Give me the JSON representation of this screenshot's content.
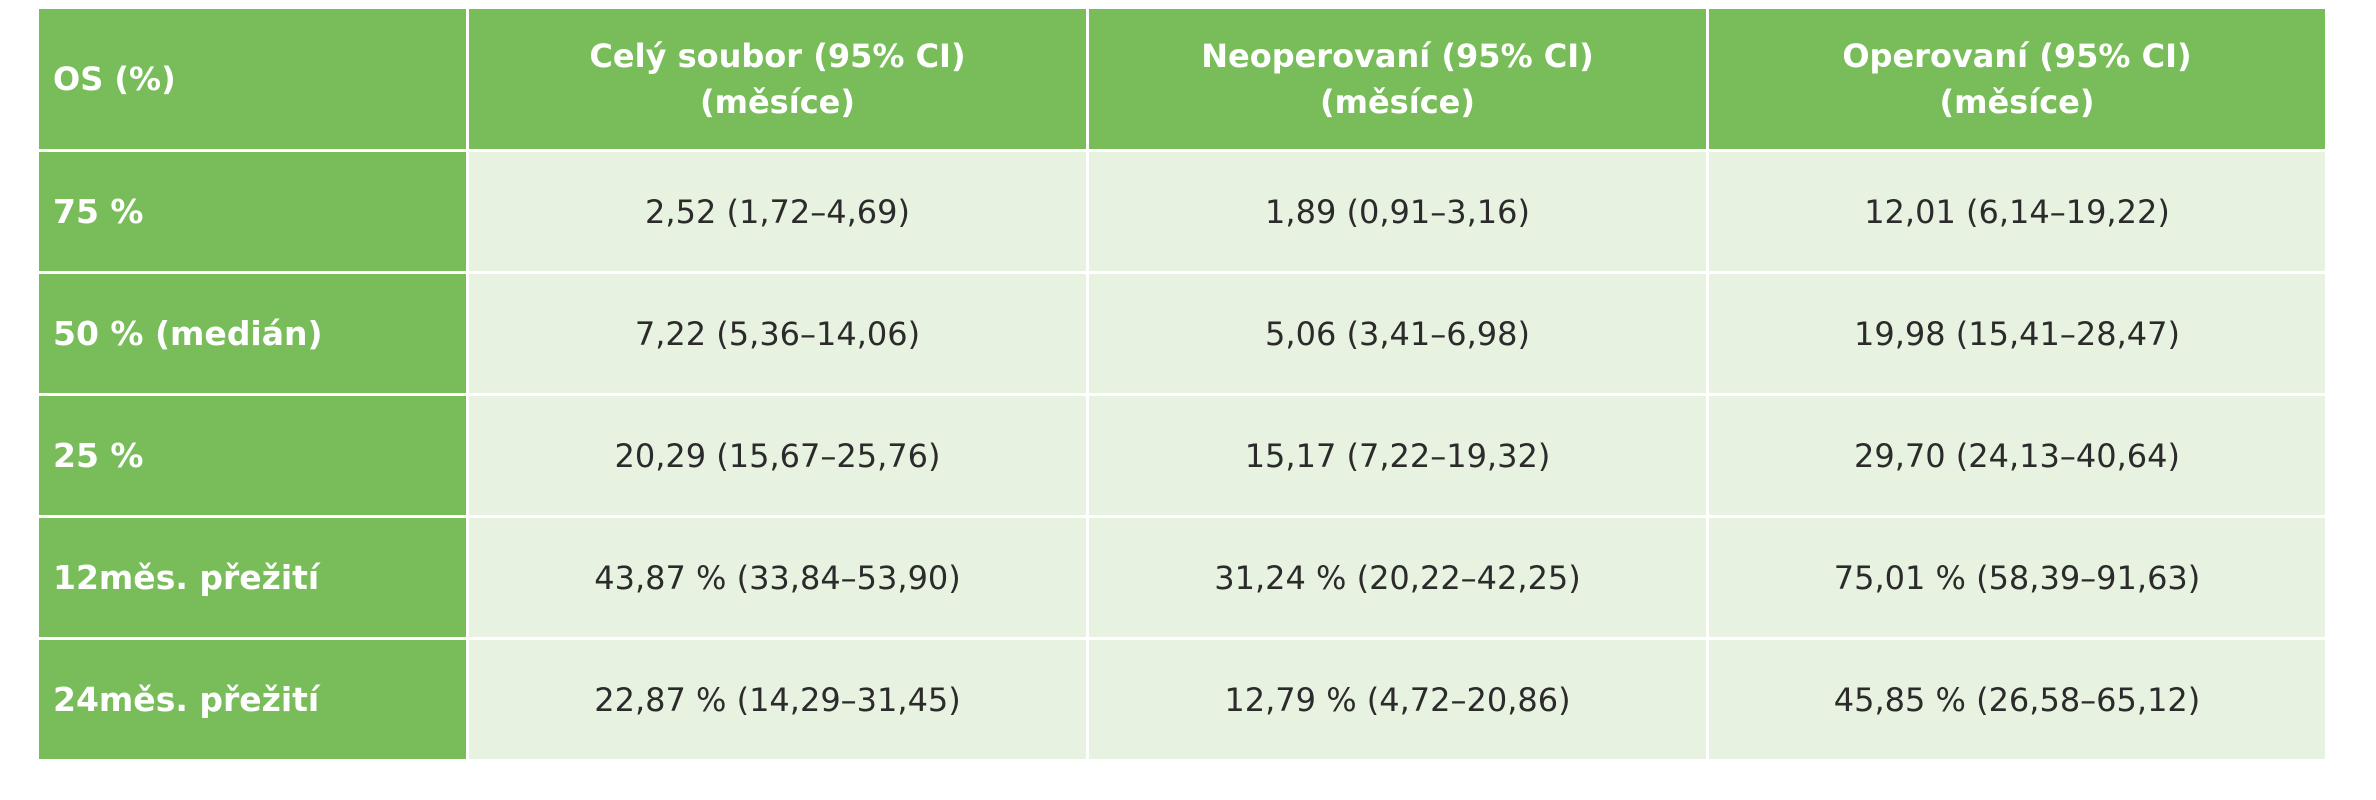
{
  "table": {
    "headers": [
      {
        "line1": "OS (%)",
        "line2": ""
      },
      {
        "line1": "Celý soubor (95% CI)",
        "line2": "(měsíce)"
      },
      {
        "line1": "Neoperovaní (95% CI)",
        "line2": "(měsíce)"
      },
      {
        "line1": "Operovaní (95% CI)",
        "line2": "(měsíce)"
      }
    ],
    "rows": [
      {
        "label": "75 %",
        "cells": [
          "2,52 (1,72–4,69)",
          "1,89 (0,91–3,16)",
          "12,01 (6,14–19,22)"
        ]
      },
      {
        "label": "50 % (medián)",
        "cells": [
          "7,22 (5,36–14,06)",
          "5,06 (3,41–6,98)",
          "19,98 (15,41–28,47)"
        ]
      },
      {
        "label": "25 %",
        "cells": [
          "20,29 (15,67–25,76)",
          "15,17 (7,22–19,32)",
          "29,70 (24,13–40,64)"
        ]
      },
      {
        "label": "12měs. přežití",
        "cells": [
          "43,87 % (33,84–53,90)",
          "31,24 % (20,22–42,25)",
          "75,01 % (58,39–91,63)"
        ]
      },
      {
        "label": "24měs. přežití",
        "cells": [
          "22,87 % (14,29–31,45)",
          "12,79 % (4,72–20,86)",
          "45,85 % (26,58–65,12)"
        ]
      }
    ]
  },
  "colors": {
    "header_green": "#78bd59",
    "cell_light_green": "#e8f2e1",
    "text_dark": "#2b2b2b",
    "text_white": "#ffffff"
  }
}
